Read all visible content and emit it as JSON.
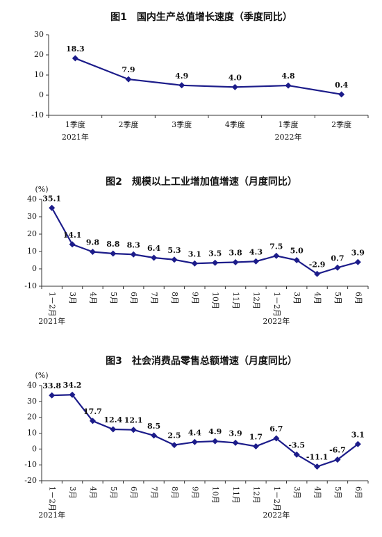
{
  "chart_data": [
    {
      "type": "line",
      "title": "图1　国内生产总值增长速度（季度同比）",
      "categories": [
        "1季度",
        "2季度",
        "3季度",
        "4季度",
        "1季度",
        "2季度"
      ],
      "year_labels": [
        "2021年",
        null,
        null,
        null,
        "2022年",
        null
      ],
      "values": [
        18.3,
        7.9,
        4.9,
        4.0,
        4.8,
        0.4
      ],
      "value_labels": [
        "18.3",
        "7.9",
        "4.9",
        "4.0",
        "4.8",
        "0.4"
      ],
      "color": "#1c1c8a",
      "ylim": [
        -10,
        30
      ],
      "yticks": [
        -10,
        0,
        10,
        20,
        30
      ]
    },
    {
      "type": "line",
      "title": "图2　规模以上工业增加值增速（月度同比）",
      "y_label": "(%)",
      "categories": [
        "1－2月",
        "3月",
        "4月",
        "5月",
        "6月",
        "7月",
        "8月",
        "9月",
        "10月",
        "11月",
        "12月",
        "1－2月",
        "3月",
        "4月",
        "5月",
        "6月"
      ],
      "year_labels": [
        "2021年",
        null,
        null,
        null,
        null,
        null,
        null,
        null,
        null,
        null,
        null,
        "2022年",
        null,
        null,
        null,
        null
      ],
      "values": [
        35.1,
        14.1,
        9.8,
        8.8,
        8.3,
        6.4,
        5.3,
        3.1,
        3.5,
        3.8,
        4.3,
        7.5,
        5.0,
        -2.9,
        0.7,
        3.9
      ],
      "value_labels": [
        "35.1",
        "14.1",
        "9.8",
        "8.8",
        "8.3",
        "6.4",
        "5.3",
        "3.1",
        "3.5",
        "3.8",
        "4.3",
        "7.5",
        "5.0",
        "-2.9",
        "0.7",
        "3.9"
      ],
      "color": "#1c1c8a",
      "ylim": [
        -10,
        40
      ],
      "yticks": [
        -10,
        0,
        10,
        20,
        30,
        40
      ]
    },
    {
      "type": "line",
      "title": "图3　社会消费品零售总额增速（月度同比）",
      "y_label": "(%)",
      "categories": [
        "1－2月",
        "3月",
        "4月",
        "5月",
        "6月",
        "7月",
        "8月",
        "9月",
        "10月",
        "11月",
        "12月",
        "1－2月",
        "3月",
        "4月",
        "5月",
        "6月"
      ],
      "year_labels": [
        "2021年",
        null,
        null,
        null,
        null,
        null,
        null,
        null,
        null,
        null,
        null,
        "2022年",
        null,
        null,
        null,
        null
      ],
      "values": [
        33.8,
        34.2,
        17.7,
        12.4,
        12.1,
        8.5,
        2.5,
        4.4,
        4.9,
        3.9,
        1.7,
        6.7,
        -3.5,
        -11.1,
        -6.7,
        3.1
      ],
      "value_labels": [
        "33.8",
        "34.2",
        "17.7",
        "12.4",
        "12.1",
        "8.5",
        "2.5",
        "4.4",
        "4.9",
        "3.9",
        "1.7",
        "6.7",
        "-3.5",
        "-11.1",
        "-6.7",
        "3.1"
      ],
      "color": "#1c1c8a",
      "ylim": [
        -20,
        40
      ],
      "yticks": [
        -20,
        -10,
        0,
        10,
        20,
        30,
        40
      ]
    }
  ]
}
